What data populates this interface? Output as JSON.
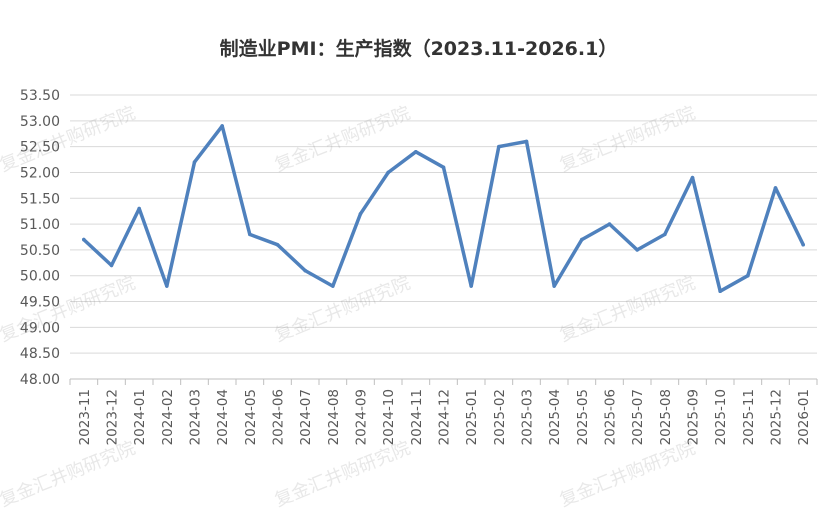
{
  "chart_data": {
    "type": "line",
    "title": "制造业PMI：生产指数（2023.11-2026.1）",
    "xlabel": "",
    "ylabel": "",
    "ylim": [
      48.0,
      53.5
    ],
    "y_ticks": [
      "48.00",
      "48.50",
      "49.00",
      "49.50",
      "50.00",
      "50.50",
      "51.00",
      "51.50",
      "52.00",
      "52.50",
      "53.00",
      "53.50"
    ],
    "categories": [
      "2023-11",
      "2023-12",
      "2024-01",
      "2024-02",
      "2024-03",
      "2024-04",
      "2024-05",
      "2024-06",
      "2024-07",
      "2024-08",
      "2024-09",
      "2024-10",
      "2024-11",
      "2024-12",
      "2025-01",
      "2025-02",
      "2025-03",
      "2025-04",
      "2025-05",
      "2025-06",
      "2025-07",
      "2025-08",
      "2025-09",
      "2025-10",
      "2025-11",
      "2025-12",
      "2026-01"
    ],
    "values": [
      50.7,
      50.2,
      51.3,
      49.8,
      52.2,
      52.9,
      50.8,
      50.6,
      50.1,
      49.8,
      51.2,
      52.0,
      52.4,
      52.1,
      49.8,
      52.5,
      52.6,
      49.8,
      50.7,
      51.0,
      50.5,
      50.8,
      51.9,
      49.7,
      50.0,
      51.7,
      50.6
    ],
    "grid": true,
    "legend": "none",
    "line_color": "#4F81BD"
  },
  "watermark": "复金汇井购研究院"
}
